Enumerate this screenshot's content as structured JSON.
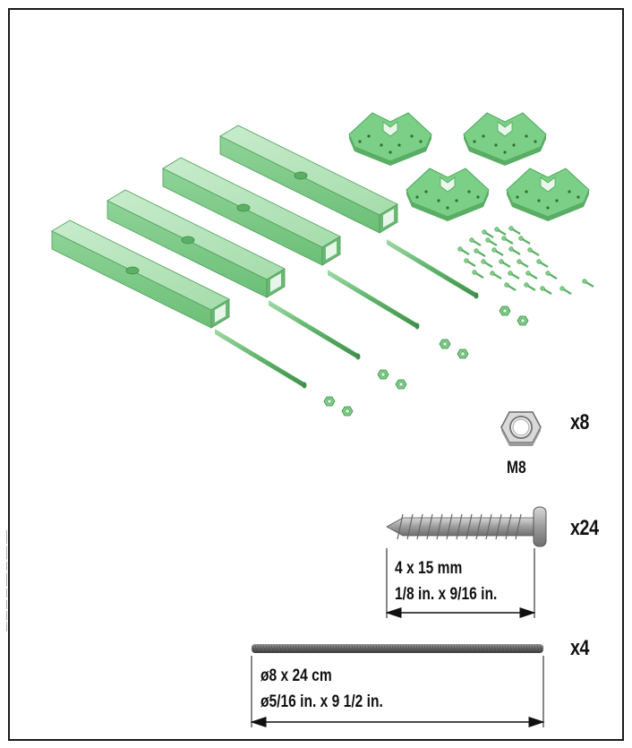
{
  "parts": {
    "nut": {
      "quantity": "x8",
      "size": "M8"
    },
    "screw": {
      "quantity": "x24",
      "size_metric": "4 x 15 mm",
      "size_imperial": "1/8 in. x 9/16 in."
    },
    "rod": {
      "quantity": "x4",
      "size_metric": "ø8 x 24 cm",
      "size_imperial": "ø5/16 in. x 9 1/2 in."
    }
  },
  "colors": {
    "part_green": "#7ccf86",
    "part_green_dark": "#4ea85c",
    "part_green_light": "#b9e6bf",
    "hardware_gray": "#b4b4b4",
    "hardware_dark": "#5a5a5a"
  },
  "side_text": "__ __ __ __ ___ __ ___ ___"
}
